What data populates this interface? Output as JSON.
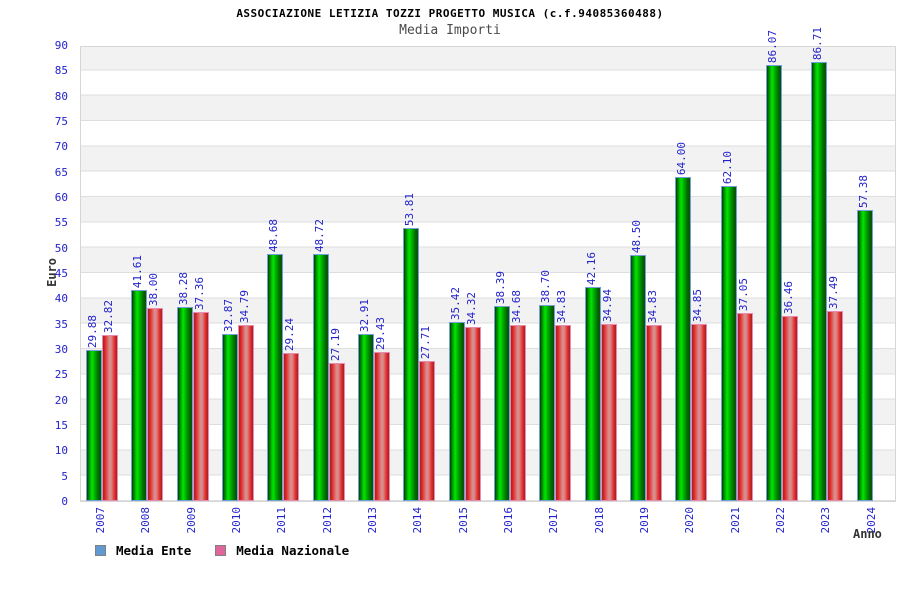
{
  "header": {
    "title": "ASSOCIAZIONE LETIZIA TOZZI PROGETTO MUSICA (c.f.94085360488)",
    "subtitle": "Media Importi"
  },
  "chart_data": {
    "type": "bar",
    "title": "ASSOCIAZIONE LETIZIA TOZZI PROGETTO MUSICA (c.f.94085360488)",
    "subtitle": "Media Importi",
    "xlabel": "Anno",
    "ylabel": "Euro",
    "ylim": [
      0,
      90
    ],
    "ytick_step": 5,
    "grid": true,
    "legend_position": "bottom-left",
    "categories": [
      "2007",
      "2008",
      "2009",
      "2010",
      "2011",
      "2012",
      "2013",
      "2014",
      "2015",
      "2016",
      "2017",
      "2018",
      "2019",
      "2020",
      "2021",
      "2022",
      "2023",
      "2024"
    ],
    "series": [
      {
        "name": "Media Ente",
        "legend_color": "#619ad1",
        "bar_color": "#00cc00",
        "values": [
          "29.88",
          "41.61",
          "38.28",
          "32.87",
          "48.68",
          "48.72",
          "32.91",
          "53.81",
          "35.42",
          "38.39",
          "38.70",
          "42.16",
          "48.50",
          "64.00",
          "62.10",
          "86.07",
          "86.71",
          "57.38"
        ]
      },
      {
        "name": "Media Nazionale",
        "legend_color": "#e0659b",
        "bar_color": "#e62e2e",
        "values": [
          "32.82",
          "38.00",
          "37.36",
          "34.79",
          "29.24",
          "27.19",
          "29.43",
          "27.71",
          "34.32",
          "34.68",
          "34.83",
          "34.94",
          "34.83",
          "34.85",
          "37.05",
          "36.46",
          "37.49",
          null
        ]
      }
    ],
    "colors": {
      "tick_label": "#2222cc",
      "axis_title": "#333333",
      "plot_stripe": "#f2f2f2",
      "grid_line": "#dedede"
    }
  }
}
